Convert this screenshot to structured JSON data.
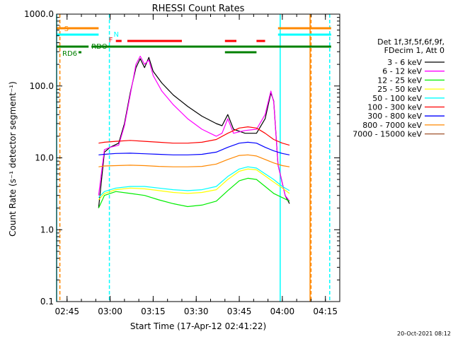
{
  "chart_data": {
    "type": "line",
    "title": "RHESSI Count Rates",
    "xlabel": "Start Time (17-Apr-12 02:41:22)",
    "ylabel": "Count Rate (s⁻¹ detector segment⁻¹)",
    "ylim": [
      0.1,
      1000.0
    ],
    "yscale": "log",
    "xlim": [
      "02:41:22",
      "04:20:00"
    ],
    "x_ticks": [
      "02:45",
      "03:00",
      "03:15",
      "03:30",
      "03:45",
      "04:00",
      "04:15"
    ],
    "y_ticks": [
      "0.1",
      "1.0",
      "10.0",
      "100.0",
      "1000.0"
    ],
    "footer": "20-Oct-2021 08:12",
    "legend": {
      "placement": "right",
      "header": [
        "Det 1f,3f,5f,6f,9f,",
        "FDecim 1, Att 0"
      ]
    },
    "series": [
      {
        "name": "3 - 6 keV",
        "color": "#000000",
        "points": [
          [
            "02:56:00",
            2.0
          ],
          [
            "02:58:00",
            12
          ],
          [
            "03:00:00",
            14
          ],
          [
            "03:03:00",
            16
          ],
          [
            "03:05:00",
            30
          ],
          [
            "03:07:00",
            80
          ],
          [
            "03:09:00",
            180
          ],
          [
            "03:10:30",
            240
          ],
          [
            "03:12:00",
            180
          ],
          [
            "03:13:30",
            250
          ],
          [
            "03:15:00",
            160
          ],
          [
            "03:18:00",
            110
          ],
          [
            "03:22:00",
            75
          ],
          [
            "03:27:00",
            52
          ],
          [
            "03:32:00",
            38
          ],
          [
            "03:37:00",
            30
          ],
          [
            "03:39:00",
            28
          ],
          [
            "03:41:00",
            40
          ],
          [
            "03:43:00",
            25
          ],
          [
            "03:47:00",
            22
          ],
          [
            "03:51:00",
            22
          ],
          [
            "03:54:00",
            35
          ],
          [
            "03:56:00",
            80
          ],
          [
            "03:57:00",
            62
          ],
          [
            "03:58:30",
            8
          ],
          [
            "04:01:00",
            3
          ],
          [
            "04:02:30",
            2.3
          ]
        ]
      },
      {
        "name": "6 - 12 keV",
        "color": "#ff00ff",
        "points": [
          [
            "02:56:00",
            3.0
          ],
          [
            "02:58:00",
            13
          ],
          [
            "03:00:00",
            14
          ],
          [
            "03:03:00",
            15
          ],
          [
            "03:05:00",
            28
          ],
          [
            "03:07:00",
            75
          ],
          [
            "03:09:00",
            200
          ],
          [
            "03:10:30",
            260
          ],
          [
            "03:12:00",
            200
          ],
          [
            "03:13:30",
            230
          ],
          [
            "03:15:00",
            140
          ],
          [
            "03:18:00",
            85
          ],
          [
            "03:22:00",
            55
          ],
          [
            "03:27:00",
            35
          ],
          [
            "03:32:00",
            25
          ],
          [
            "03:37:00",
            20
          ],
          [
            "03:39:00",
            22
          ],
          [
            "03:41:00",
            35
          ],
          [
            "03:43:00",
            22
          ],
          [
            "03:47:00",
            24
          ],
          [
            "03:51:00",
            25
          ],
          [
            "03:54:00",
            40
          ],
          [
            "03:56:00",
            85
          ],
          [
            "03:57:00",
            60
          ],
          [
            "03:58:30",
            8
          ],
          [
            "04:01:00",
            3
          ],
          [
            "04:02:30",
            2.5
          ]
        ]
      },
      {
        "name": "12 - 25 keV",
        "color": "#00ee00",
        "points": [
          [
            "02:56:00",
            2.0
          ],
          [
            "02:58:00",
            3.0
          ],
          [
            "03:02:00",
            3.4
          ],
          [
            "03:07:00",
            3.2
          ],
          [
            "03:12:00",
            3.0
          ],
          [
            "03:17:00",
            2.6
          ],
          [
            "03:22:00",
            2.3
          ],
          [
            "03:27:00",
            2.1
          ],
          [
            "03:32:00",
            2.2
          ],
          [
            "03:37:00",
            2.5
          ],
          [
            "03:41:00",
            3.5
          ],
          [
            "03:45:00",
            4.8
          ],
          [
            "03:48:00",
            5.2
          ],
          [
            "03:51:00",
            5.0
          ],
          [
            "03:54:00",
            4.0
          ],
          [
            "03:57:00",
            3.2
          ],
          [
            "04:00:00",
            2.8
          ],
          [
            "04:02:30",
            2.5
          ]
        ]
      },
      {
        "name": "25 - 50 keV",
        "color": "#ffff00",
        "points": [
          [
            "02:56:00",
            2.6
          ],
          [
            "02:58:00",
            3.2
          ],
          [
            "03:02:00",
            3.6
          ],
          [
            "03:07:00",
            3.8
          ],
          [
            "03:12:00",
            3.7
          ],
          [
            "03:17:00",
            3.5
          ],
          [
            "03:22:00",
            3.3
          ],
          [
            "03:27:00",
            3.2
          ],
          [
            "03:32:00",
            3.3
          ],
          [
            "03:37:00",
            3.6
          ],
          [
            "03:41:00",
            5.0
          ],
          [
            "03:45:00",
            6.5
          ],
          [
            "03:48:00",
            7.0
          ],
          [
            "03:51:00",
            6.8
          ],
          [
            "03:54:00",
            5.6
          ],
          [
            "03:57:00",
            4.6
          ],
          [
            "04:00:00",
            3.8
          ],
          [
            "04:02:30",
            3.2
          ]
        ]
      },
      {
        "name": "50 - 100 keV",
        "color": "#00ffff",
        "points": [
          [
            "02:56:00",
            2.8
          ],
          [
            "02:58:00",
            3.4
          ],
          [
            "03:02:00",
            3.8
          ],
          [
            "03:07:00",
            4.0
          ],
          [
            "03:12:00",
            4.0
          ],
          [
            "03:17:00",
            3.8
          ],
          [
            "03:22:00",
            3.6
          ],
          [
            "03:27:00",
            3.5
          ],
          [
            "03:32:00",
            3.6
          ],
          [
            "03:37:00",
            4.0
          ],
          [
            "03:41:00",
            5.5
          ],
          [
            "03:45:00",
            7.0
          ],
          [
            "03:48:00",
            7.5
          ],
          [
            "03:51:00",
            7.2
          ],
          [
            "03:54:00",
            6.0
          ],
          [
            "03:57:00",
            5.0
          ],
          [
            "04:00:00",
            4.0
          ],
          [
            "04:02:30",
            3.5
          ]
        ]
      },
      {
        "name": "100 - 300 keV",
        "color": "#ff0000",
        "points": [
          [
            "02:56:00",
            16
          ],
          [
            "02:58:00",
            16.5
          ],
          [
            "03:02:00",
            17
          ],
          [
            "03:07:00",
            17.5
          ],
          [
            "03:12:00",
            17
          ],
          [
            "03:17:00",
            16.5
          ],
          [
            "03:22:00",
            16
          ],
          [
            "03:27:00",
            16
          ],
          [
            "03:32:00",
            16.5
          ],
          [
            "03:37:00",
            18
          ],
          [
            "03:41:00",
            22
          ],
          [
            "03:45:00",
            26
          ],
          [
            "03:48:00",
            27
          ],
          [
            "03:51:00",
            26
          ],
          [
            "03:54:00",
            22
          ],
          [
            "03:57:00",
            18
          ],
          [
            "04:00:00",
            16
          ],
          [
            "04:02:30",
            15
          ]
        ]
      },
      {
        "name": "300 - 800 keV",
        "color": "#0000ff",
        "points": [
          [
            "02:56:00",
            11
          ],
          [
            "02:58:00",
            11.2
          ],
          [
            "03:02:00",
            11.5
          ],
          [
            "03:07:00",
            11.6
          ],
          [
            "03:12:00",
            11.4
          ],
          [
            "03:17:00",
            11.2
          ],
          [
            "03:22:00",
            11
          ],
          [
            "03:27:00",
            11
          ],
          [
            "03:32:00",
            11.2
          ],
          [
            "03:37:00",
            12
          ],
          [
            "03:41:00",
            14
          ],
          [
            "03:45:00",
            16
          ],
          [
            "03:48:00",
            16.5
          ],
          [
            "03:51:00",
            16
          ],
          [
            "03:54:00",
            14
          ],
          [
            "03:57:00",
            12.5
          ],
          [
            "04:00:00",
            11.5
          ],
          [
            "04:02:30",
            11
          ]
        ]
      },
      {
        "name": "800 - 7000 keV",
        "color": "#ff8800",
        "points": [
          [
            "02:56:00",
            7.5
          ],
          [
            "02:58:00",
            7.7
          ],
          [
            "03:02:00",
            7.8
          ],
          [
            "03:07:00",
            7.9
          ],
          [
            "03:12:00",
            7.8
          ],
          [
            "03:17:00",
            7.6
          ],
          [
            "03:22:00",
            7.5
          ],
          [
            "03:27:00",
            7.5
          ],
          [
            "03:32:00",
            7.6
          ],
          [
            "03:37:00",
            8.2
          ],
          [
            "03:41:00",
            9.5
          ],
          [
            "03:45:00",
            10.8
          ],
          [
            "03:48:00",
            11.0
          ],
          [
            "03:51:00",
            10.6
          ],
          [
            "03:54:00",
            9.5
          ],
          [
            "03:57:00",
            8.5
          ],
          [
            "04:00:00",
            7.8
          ],
          [
            "04:02:30",
            7.5
          ]
        ]
      },
      {
        "name": "7000 - 15000 keV",
        "color": "#a0522d",
        "points": []
      }
    ],
    "flags": [
      {
        "label": "S",
        "color": "#ff8800",
        "segments": [
          [
            "02:41:22",
            "02:56:00"
          ],
          [
            "03:58:30",
            "04:17:00"
          ]
        ]
      },
      {
        "label": "N",
        "color": "#00ffff",
        "segments": [
          [
            "02:41:22",
            "02:56:00"
          ],
          [
            "03:58:30",
            "04:17:00"
          ]
        ]
      },
      {
        "label": "F",
        "color": "#ff0000",
        "segments": [
          [
            "03:02:00",
            "03:04:00"
          ],
          [
            "03:06:00",
            "03:25:00"
          ],
          [
            "03:40:00",
            "03:44:00"
          ],
          [
            "03:51:00",
            "03:54:00"
          ]
        ]
      },
      {
        "label": "RDO",
        "color": "#008000",
        "segments": [
          [
            "02:41:22",
            "02:52:30"
          ],
          [
            "02:53:30",
            "04:17:00"
          ]
        ]
      },
      {
        "label": "RD6",
        "color": "#008000",
        "segments": [
          [
            "02:49:00",
            "02:50:00"
          ],
          [
            "03:40:00",
            "03:51:00"
          ]
        ]
      }
    ],
    "vlines": [
      {
        "x": "02:41:22",
        "color": "#00ffff",
        "style": "solid"
      },
      {
        "x": "02:42:30",
        "color": "#ff8800",
        "style": "dashed"
      },
      {
        "x": "02:59:45",
        "color": "#00ffff",
        "style": "dashed"
      },
      {
        "x": "03:59:15",
        "color": "#00ffff",
        "style": "solid"
      },
      {
        "x": "04:09:40",
        "color": "#ff8800",
        "style": "solid"
      },
      {
        "x": "04:10:00",
        "color": "#ff8800",
        "style": "dashed"
      },
      {
        "x": "04:16:30",
        "color": "#00ffff",
        "style": "dashed"
      }
    ]
  }
}
